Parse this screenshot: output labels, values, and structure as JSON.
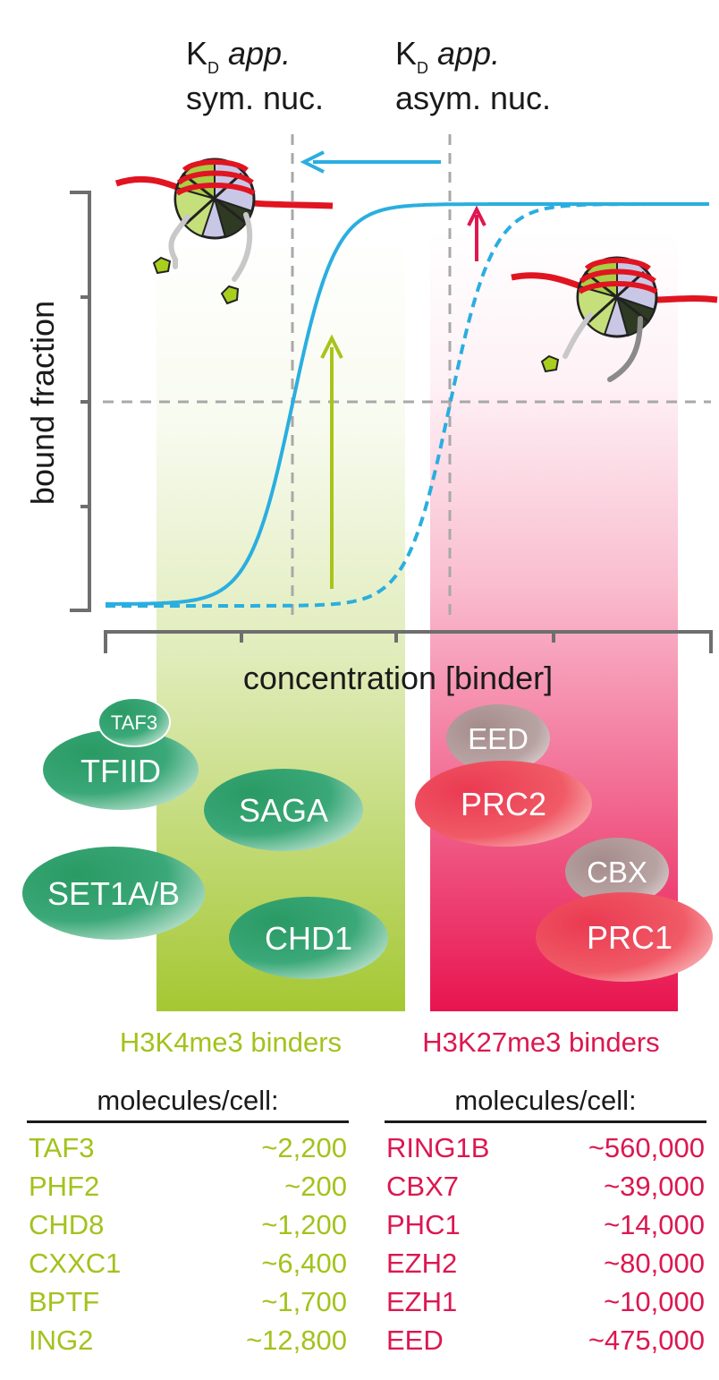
{
  "labels": {
    "kd_symbol": "K",
    "kd_sub": "D",
    "app": "app.",
    "sym": "sym. nuc.",
    "asym": "asym. nuc.",
    "ylabel": "bound fraction",
    "xlabel": "concentration [binder]",
    "h3k4": "H3K4me3 binders",
    "h3k27": "H3K27me3 binders"
  },
  "complexes": {
    "green": [
      "TAF3",
      "TFIID",
      "SAGA",
      "SET1A/B",
      "CHD1"
    ],
    "red": [
      "EED",
      "PRC2",
      "CBX",
      "PRC1"
    ]
  },
  "colors": {
    "curve": "#2aaee0",
    "green_arrow": "#a9c31a",
    "red_arrow": "#e0164f",
    "green_band": "#a6c93a",
    "red_band": "#ec1759",
    "dashed": "#a8a8a8"
  },
  "tables": {
    "left": {
      "header": "molecules/cell:",
      "rows": [
        {
          "name": "TAF3",
          "value": "~2,200"
        },
        {
          "name": "PHF2",
          "value": "~200"
        },
        {
          "name": "CHD8",
          "value": "~1,200"
        },
        {
          "name": "CXXC1",
          "value": "~6,400"
        },
        {
          "name": "BPTF",
          "value": "~1,700"
        },
        {
          "name": "ING2",
          "value": "~12,800"
        }
      ]
    },
    "right": {
      "header": "molecules/cell:",
      "rows": [
        {
          "name": "RING1B",
          "value": "~560,000"
        },
        {
          "name": "CBX7",
          "value": "~39,000"
        },
        {
          "name": "PHC1",
          "value": "~14,000"
        },
        {
          "name": "EZH2",
          "value": "~80,000"
        },
        {
          "name": "EZH1",
          "value": "~10,000"
        },
        {
          "name": "EED",
          "value": "~475,000"
        }
      ]
    }
  }
}
